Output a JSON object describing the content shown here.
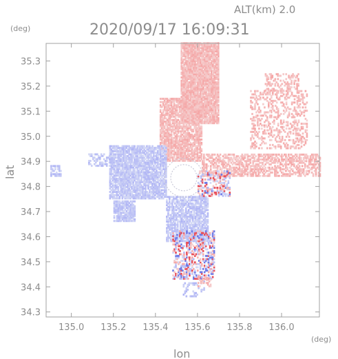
{
  "chart_data": {
    "type": "heatmap",
    "title": "2020/09/17 16:09:31",
    "altitude_label": "ALT(km) 2.0",
    "xlabel": "lon",
    "ylabel": "lat",
    "xunit": "(deg)",
    "yunit": "(deg)",
    "xlim": [
      134.88,
      136.18
    ],
    "ylim": [
      34.28,
      35.37
    ],
    "xticks": [
      "135.0",
      "135.2",
      "135.4",
      "135.6",
      "135.8",
      "136.0"
    ],
    "xtick_values": [
      135.0,
      135.2,
      135.4,
      135.6,
      135.8,
      136.0
    ],
    "yticks": [
      "34.3",
      "34.4",
      "34.5",
      "34.6",
      "34.7",
      "34.8",
      "34.9",
      "35.0",
      "35.1",
      "35.2",
      "35.3"
    ],
    "ytick_values": [
      34.3,
      34.4,
      34.5,
      34.6,
      34.7,
      34.8,
      34.9,
      35.0,
      35.1,
      35.2,
      35.3
    ],
    "grid": false,
    "colors": {
      "positive": "#f2a9a9",
      "negative": "#b8bdf0",
      "axis": "#a0a0a0",
      "text": "#8c8c8c"
    },
    "radar_center": [
      135.535,
      34.835
    ],
    "regions": [
      {
        "sign": 1,
        "lon": [
          135.52,
          135.7
        ],
        "lat": [
          35.05,
          35.37
        ],
        "density": 0.95
      },
      {
        "sign": 1,
        "lon": [
          135.42,
          135.62
        ],
        "lat": [
          34.9,
          35.15
        ],
        "density": 0.8
      },
      {
        "sign": 1,
        "lon": [
          135.62,
          136.18
        ],
        "lat": [
          34.84,
          34.93
        ],
        "density": 0.6
      },
      {
        "sign": 1,
        "lon": [
          135.85,
          136.12
        ],
        "lat": [
          34.95,
          35.18
        ],
        "density": 0.35
      },
      {
        "sign": 1,
        "lon": [
          135.92,
          136.08
        ],
        "lat": [
          35.18,
          35.25
        ],
        "density": 0.4
      },
      {
        "sign": -1,
        "lon": [
          135.18,
          135.45
        ],
        "lat": [
          34.75,
          34.96
        ],
        "density": 0.85
      },
      {
        "sign": -1,
        "lon": [
          135.08,
          135.2
        ],
        "lat": [
          34.88,
          34.93
        ],
        "density": 0.45
      },
      {
        "sign": -1,
        "lon": [
          135.2,
          135.3
        ],
        "lat": [
          34.66,
          34.74
        ],
        "density": 0.8
      },
      {
        "sign": -1,
        "lon": [
          135.45,
          135.65
        ],
        "lat": [
          34.58,
          34.76
        ],
        "density": 0.75
      },
      {
        "sign": 0,
        "lon": [
          135.48,
          135.68
        ],
        "lat": [
          34.43,
          34.62
        ],
        "density": 0.55
      },
      {
        "sign": 0,
        "lon": [
          135.6,
          135.75
        ],
        "lat": [
          34.76,
          34.86
        ],
        "density": 0.45
      },
      {
        "sign": -1,
        "lon": [
          134.9,
          134.95
        ],
        "lat": [
          34.84,
          34.88
        ],
        "density": 0.6
      },
      {
        "sign": -1,
        "lon": [
          135.53,
          135.63
        ],
        "lat": [
          34.36,
          34.42
        ],
        "density": 0.3
      },
      {
        "sign": 1,
        "lon": [
          135.6,
          135.66
        ],
        "lat": [
          34.4,
          34.44
        ],
        "density": 0.4
      }
    ]
  }
}
